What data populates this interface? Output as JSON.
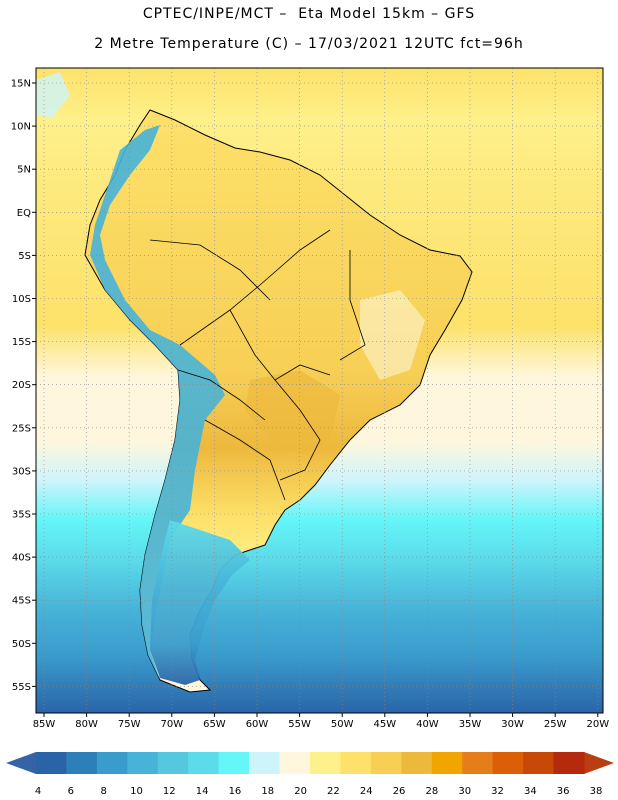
{
  "header": {
    "line1": "CPTEC/INPE/MCT –  Eta Model 15km – GFS",
    "line2": "2 Metre Temperature (C) – 17/03/2021 12UTC fct=96h"
  },
  "map": {
    "lat_labels": [
      "15N",
      "10N",
      "5N",
      "EQ",
      "5S",
      "10S",
      "15S",
      "20S",
      "25S",
      "30S",
      "35S",
      "40S",
      "45S",
      "50S",
      "55S"
    ],
    "lon_labels": [
      "85W",
      "80W",
      "75W",
      "70W",
      "65W",
      "60W",
      "55W",
      "50W",
      "45W",
      "40W",
      "35W",
      "30W",
      "25W",
      "20W"
    ]
  },
  "colorbar": {
    "ticks": [
      "4",
      "6",
      "8",
      "10",
      "12",
      "14",
      "16",
      "18",
      "20",
      "22",
      "24",
      "26",
      "28",
      "30",
      "32",
      "34",
      "36",
      "38"
    ],
    "colors": [
      "#2a64a8",
      "#2d7fba",
      "#3a9ccd",
      "#47b3d8",
      "#55c8df",
      "#5cdcea",
      "#64f6f8",
      "#cdf4fb",
      "#fef7de",
      "#fef08a",
      "#fde16a",
      "#f7cf55",
      "#edb93d",
      "#f2a500",
      "#e57e1a",
      "#dc5f08",
      "#c84808",
      "#b52a0c"
    ],
    "low_arrow_color": "#3563a5",
    "high_arrow_color": "#b93e12"
  }
}
